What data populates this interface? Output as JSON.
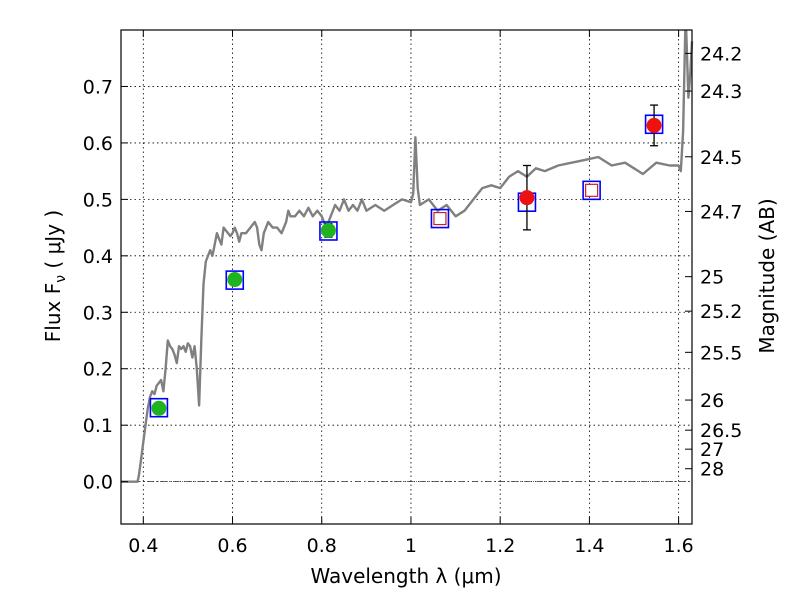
{
  "chart_data": {
    "type": "scatter",
    "title": "",
    "xlabel": "Wavelength  λ (μm)",
    "ylabel_left": "Flux  F",
    "ylabel_left_sub": "ν",
    "ylabel_left_unit": "  ( μJy )",
    "ylabel_right": "Magnitude (AB)",
    "xlim": [
      0.35,
      1.63
    ],
    "ylim": [
      -0.075,
      0.8
    ],
    "grid": true,
    "x_ticks": [
      {
        "value": 0.4,
        "label": "0.4"
      },
      {
        "value": 0.6,
        "label": "0.6"
      },
      {
        "value": 0.8,
        "label": "0.8"
      },
      {
        "value": 1.0,
        "label": "1"
      },
      {
        "value": 1.2,
        "label": "1.2"
      },
      {
        "value": 1.4,
        "label": "1.4"
      },
      {
        "value": 1.6,
        "label": "1.6"
      }
    ],
    "y_ticks": [
      {
        "value": 0.0,
        "label": "0.0"
      },
      {
        "value": 0.1,
        "label": "0.1"
      },
      {
        "value": 0.2,
        "label": "0.2"
      },
      {
        "value": 0.3,
        "label": "0.3"
      },
      {
        "value": 0.4,
        "label": "0.4"
      },
      {
        "value": 0.5,
        "label": "0.5"
      },
      {
        "value": 0.6,
        "label": "0.6"
      },
      {
        "value": 0.7,
        "label": "0.7"
      }
    ],
    "mag_ticks": [
      {
        "mag": 24.2,
        "label": "24.2"
      },
      {
        "mag": 24.3,
        "label": "24.3"
      },
      {
        "mag": 24.5,
        "label": "24.5"
      },
      {
        "mag": 24.7,
        "label": "24.7"
      },
      {
        "mag": 25.0,
        "label": "25"
      },
      {
        "mag": 25.2,
        "label": "25.2"
      },
      {
        "mag": 25.5,
        "label": "25.5"
      },
      {
        "mag": 26.0,
        "label": "26"
      },
      {
        "mag": 26.5,
        "label": "26.5"
      },
      {
        "mag": 27.0,
        "label": "27"
      },
      {
        "mag": 28.0,
        "label": "28"
      }
    ],
    "colors": {
      "spectrum": "#808080",
      "green_points": "#1fb31f",
      "red_points": "#ee1111",
      "model_box": "#0000ff",
      "upper_limit_box": "#cc2222",
      "zero_line": "#333333"
    },
    "spectrum": [
      [
        0.35,
        0.0
      ],
      [
        0.387,
        0.0
      ],
      [
        0.39,
        0.01
      ],
      [
        0.395,
        0.04
      ],
      [
        0.4,
        0.07
      ],
      [
        0.405,
        0.1
      ],
      [
        0.41,
        0.13
      ],
      [
        0.415,
        0.15
      ],
      [
        0.42,
        0.16
      ],
      [
        0.425,
        0.155
      ],
      [
        0.43,
        0.17
      ],
      [
        0.44,
        0.18
      ],
      [
        0.445,
        0.16
      ],
      [
        0.45,
        0.2
      ],
      [
        0.455,
        0.25
      ],
      [
        0.46,
        0.24
      ],
      [
        0.465,
        0.235
      ],
      [
        0.47,
        0.225
      ],
      [
        0.475,
        0.21
      ],
      [
        0.48,
        0.24
      ],
      [
        0.485,
        0.235
      ],
      [
        0.49,
        0.24
      ],
      [
        0.495,
        0.23
      ],
      [
        0.5,
        0.245
      ],
      [
        0.505,
        0.24
      ],
      [
        0.51,
        0.22
      ],
      [
        0.515,
        0.24
      ],
      [
        0.52,
        0.2
      ],
      [
        0.525,
        0.135
      ],
      [
        0.53,
        0.25
      ],
      [
        0.535,
        0.35
      ],
      [
        0.54,
        0.39
      ],
      [
        0.55,
        0.41
      ],
      [
        0.555,
        0.4
      ],
      [
        0.56,
        0.42
      ],
      [
        0.565,
        0.44
      ],
      [
        0.57,
        0.43
      ],
      [
        0.575,
        0.42
      ],
      [
        0.58,
        0.45
      ],
      [
        0.59,
        0.44
      ],
      [
        0.595,
        0.435
      ],
      [
        0.6,
        0.44
      ],
      [
        0.605,
        0.45
      ],
      [
        0.61,
        0.44
      ],
      [
        0.615,
        0.425
      ],
      [
        0.62,
        0.44
      ],
      [
        0.63,
        0.44
      ],
      [
        0.64,
        0.45
      ],
      [
        0.645,
        0.455
      ],
      [
        0.65,
        0.46
      ],
      [
        0.655,
        0.45
      ],
      [
        0.66,
        0.42
      ],
      [
        0.665,
        0.41
      ],
      [
        0.67,
        0.44
      ],
      [
        0.68,
        0.46
      ],
      [
        0.69,
        0.45
      ],
      [
        0.7,
        0.45
      ],
      [
        0.71,
        0.44
      ],
      [
        0.72,
        0.46
      ],
      [
        0.725,
        0.48
      ],
      [
        0.73,
        0.47
      ],
      [
        0.74,
        0.47
      ],
      [
        0.75,
        0.48
      ],
      [
        0.76,
        0.47
      ],
      [
        0.77,
        0.485
      ],
      [
        0.78,
        0.47
      ],
      [
        0.79,
        0.48
      ],
      [
        0.8,
        0.47
      ],
      [
        0.81,
        0.45
      ],
      [
        0.82,
        0.47
      ],
      [
        0.83,
        0.49
      ],
      [
        0.84,
        0.48
      ],
      [
        0.85,
        0.5
      ],
      [
        0.86,
        0.48
      ],
      [
        0.87,
        0.49
      ],
      [
        0.88,
        0.48
      ],
      [
        0.89,
        0.5
      ],
      [
        0.9,
        0.48
      ],
      [
        0.92,
        0.49
      ],
      [
        0.94,
        0.48
      ],
      [
        0.96,
        0.49
      ],
      [
        0.98,
        0.5
      ],
      [
        1.0,
        0.495
      ],
      [
        1.005,
        0.51
      ],
      [
        1.01,
        0.61
      ],
      [
        1.015,
        0.52
      ],
      [
        1.02,
        0.49
      ],
      [
        1.04,
        0.5
      ],
      [
        1.06,
        0.48
      ],
      [
        1.08,
        0.49
      ],
      [
        1.1,
        0.47
      ],
      [
        1.12,
        0.48
      ],
      [
        1.14,
        0.5
      ],
      [
        1.16,
        0.52
      ],
      [
        1.18,
        0.525
      ],
      [
        1.2,
        0.52
      ],
      [
        1.22,
        0.54
      ],
      [
        1.24,
        0.55
      ],
      [
        1.26,
        0.54
      ],
      [
        1.28,
        0.555
      ],
      [
        1.3,
        0.55
      ],
      [
        1.33,
        0.56
      ],
      [
        1.36,
        0.565
      ],
      [
        1.39,
        0.57
      ],
      [
        1.42,
        0.575
      ],
      [
        1.45,
        0.56
      ],
      [
        1.48,
        0.565
      ],
      [
        1.5,
        0.555
      ],
      [
        1.52,
        0.545
      ],
      [
        1.55,
        0.565
      ],
      [
        1.58,
        0.56
      ],
      [
        1.6,
        0.56
      ],
      [
        1.605,
        0.55
      ],
      [
        1.61,
        0.62
      ],
      [
        1.615,
        0.8
      ]
    ],
    "spectrum_tail": [
      [
        1.617,
        0.8
      ],
      [
        1.622,
        0.68
      ],
      [
        1.626,
        0.72
      ],
      [
        1.63,
        0.78
      ]
    ],
    "series": [
      {
        "marker": "model_box",
        "points": [
          {
            "x": 0.435,
            "y": 0.131
          },
          {
            "x": 0.605,
            "y": 0.357
          },
          {
            "x": 0.815,
            "y": 0.444
          },
          {
            "x": 1.065,
            "y": 0.466
          },
          {
            "x": 1.26,
            "y": 0.495
          },
          {
            "x": 1.405,
            "y": 0.516
          },
          {
            "x": 1.545,
            "y": 0.633
          }
        ]
      },
      {
        "marker": "green_points",
        "points": [
          {
            "x": 0.435,
            "y": 0.13,
            "err": 0.01
          },
          {
            "x": 0.605,
            "y": 0.358,
            "err": 0.01
          },
          {
            "x": 0.815,
            "y": 0.445,
            "err": 0.012
          }
        ]
      },
      {
        "marker": "red_points",
        "points": [
          {
            "x": 1.26,
            "y": 0.503,
            "err": 0.057
          },
          {
            "x": 1.545,
            "y": 0.631,
            "err": 0.036
          }
        ]
      },
      {
        "marker": "upper_limit_box",
        "points": [
          {
            "x": 1.065,
            "y": 0.466
          },
          {
            "x": 1.405,
            "y": 0.516
          }
        ]
      }
    ]
  }
}
